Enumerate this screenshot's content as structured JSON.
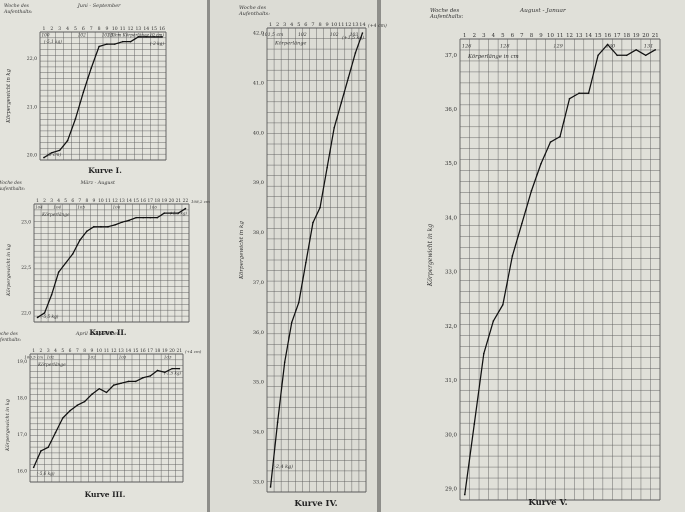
{
  "chart_data": [
    {
      "type": "line",
      "caption": "Kurve I.",
      "header_left": [
        "Woche des",
        "Aufenthalts:"
      ],
      "period": "Juni - September",
      "week_labels": [
        "1",
        "2",
        "3",
        "4",
        "5",
        "6",
        "7",
        "8",
        "9",
        "10",
        "11",
        "12",
        "13",
        "14",
        "15",
        "16"
      ],
      "height_labels": [
        {
          "week": 1.2,
          "text": "100"
        },
        {
          "week": 5.8,
          "text": "102"
        },
        {
          "week": 9.6,
          "text": "103"
        }
      ],
      "height_note": "103,5 cm Körperlänge (0 cm)",
      "start_note": "(0 cm)",
      "start_note2": "(-5,1 kg)",
      "end_note": "(-2 kg)",
      "ylabel": "Körpergewicht in kg",
      "y_ticks": [
        {
          "v": 20.0,
          "t": "20,0"
        },
        {
          "v": 21.0,
          "t": "21,0"
        },
        {
          "v": 22.0,
          "t": "22,0"
        }
      ],
      "ylim": [
        19.9,
        22.55
      ],
      "x": [
        1,
        2,
        3,
        4,
        5,
        6,
        7,
        8,
        9,
        10,
        11,
        12,
        13,
        14,
        15,
        16
      ],
      "values": [
        19.95,
        20.05,
        20.1,
        20.3,
        20.75,
        21.3,
        21.8,
        22.25,
        22.3,
        22.3,
        22.35,
        22.35,
        22.45,
        22.45,
        22.45,
        22.45
      ]
    },
    {
      "type": "line",
      "caption": "Kurve II.",
      "header_left": [
        "Woche des",
        "Aufenthalts:"
      ],
      "period": "März - August",
      "week_labels": [
        "1",
        "2",
        "3",
        "4",
        "5",
        "6",
        "7",
        "8",
        "9",
        "10",
        "11",
        "12",
        "13",
        "14",
        "15",
        "16",
        "17",
        "18",
        "19",
        "20",
        "21",
        "22"
      ],
      "height_labels": [
        {
          "week": 1.2,
          "text": "104"
        },
        {
          "week": 3.8,
          "text": "104"
        },
        {
          "week": 7.2,
          "text": "105"
        },
        {
          "week": 12.2,
          "text": "106"
        },
        {
          "week": 17.4,
          "text": "106"
        }
      ],
      "height_row_note": "Körperlänge",
      "start_note": "(-5,5 kg)",
      "end_note": "(-1,6 kg)",
      "end_height": "108,2 cm",
      "ylabel": "Körpergewicht in kg",
      "y_ticks": [
        {
          "v": 22.0,
          "t": "22,0"
        },
        {
          "v": 22.5,
          "t": "22,5"
        },
        {
          "v": 23.0,
          "t": "23,0"
        }
      ],
      "ylim": [
        21.9,
        23.2
      ],
      "x": [
        1,
        2,
        3,
        4,
        5,
        6,
        7,
        8,
        9,
        10,
        11,
        12,
        13,
        14,
        15,
        16,
        17,
        18,
        19,
        20,
        21,
        22
      ],
      "values": [
        21.95,
        22.0,
        22.2,
        22.45,
        22.55,
        22.65,
        22.8,
        22.9,
        22.95,
        22.95,
        22.95,
        22.97,
        23.0,
        23.02,
        23.05,
        23.05,
        23.05,
        23.05,
        23.1,
        23.1,
        23.1,
        23.15
      ]
    },
    {
      "type": "line",
      "caption": "Kurve III.",
      "header_left": [
        "Woche des",
        "Aufenthalts:"
      ],
      "period": "April - September",
      "week_labels": [
        "1",
        "2",
        "3",
        "4",
        "5",
        "6",
        "7",
        "8",
        "9",
        "10",
        "11",
        "12",
        "13",
        "14",
        "15",
        "16",
        "17",
        "18",
        "19",
        "20",
        "21"
      ],
      "height_labels": [
        {
          "week": 1.0,
          "text": "100,5 cm"
        },
        {
          "week": 3.3,
          "text": "102"
        },
        {
          "week": 9.0,
          "text": "102"
        },
        {
          "week": 13.2,
          "text": "103"
        },
        {
          "week": 19.4,
          "text": "103"
        }
      ],
      "height_row_note": "Körperlänge",
      "start_note": "(-5,6 kg)",
      "end_note": "(-1,5 kg)",
      "end_height": "(+4 cm)",
      "ylabel": "Körpergewicht in kg",
      "y_ticks": [
        {
          "v": 16.0,
          "t": "16,0"
        },
        {
          "v": 17.0,
          "t": "17,0"
        },
        {
          "v": 18.0,
          "t": "18,0"
        },
        {
          "v": 19.0,
          "t": "19,0"
        }
      ],
      "ylim": [
        15.7,
        19.2
      ],
      "x": [
        1,
        2,
        3,
        4,
        5,
        6,
        7,
        8,
        9,
        10,
        11,
        12,
        13,
        14,
        15,
        16,
        17,
        18,
        19,
        20,
        21
      ],
      "values": [
        16.1,
        16.55,
        16.65,
        17.05,
        17.45,
        17.65,
        17.8,
        17.9,
        18.1,
        18.25,
        18.15,
        18.35,
        18.4,
        18.45,
        18.45,
        18.55,
        18.6,
        18.75,
        18.7,
        18.8,
        18.8
      ]
    },
    {
      "type": "line",
      "caption": "Kurve IV.",
      "header_left": [
        "Woche des",
        "Aufenthalts:"
      ],
      "week_labels": [
        "1",
        "2",
        "3",
        "4",
        "5",
        "6",
        "7",
        "8",
        "9",
        "10",
        "11",
        "12",
        "13",
        "14"
      ],
      "height_labels": [
        {
          "week": 1.3,
          "text": "101,5 cm"
        },
        {
          "week": 5.5,
          "text": "102"
        },
        {
          "week": 10.0,
          "text": "102"
        },
        {
          "week": 12.8,
          "text": "103"
        }
      ],
      "height_row_note": "Körperlänge",
      "start_note": "(-2,4 kg)",
      "end_note": "(+1,5 kg)",
      "end_height": "(+4 cm)",
      "ylabel": "Körpergewicht in kg",
      "y_ticks": [
        {
          "v": 33.0,
          "t": "33,0"
        },
        {
          "v": 34.0,
          "t": "34,0"
        },
        {
          "v": 35.0,
          "t": "35,0"
        },
        {
          "v": 36.0,
          "t": "36,0"
        },
        {
          "v": 37.0,
          "t": "37,0"
        },
        {
          "v": 38.0,
          "t": "38,0"
        },
        {
          "v": 39.0,
          "t": "39,0"
        },
        {
          "v": 40.0,
          "t": "40,0"
        },
        {
          "v": 41.0,
          "t": "41,0"
        },
        {
          "v": 42.0,
          "t": "42,0"
        }
      ],
      "ylim": [
        32.8,
        42.1
      ],
      "x": [
        1,
        2,
        3,
        4,
        5,
        6,
        7,
        8,
        9,
        10,
        11,
        12,
        13,
        14
      ],
      "values": [
        32.9,
        34.2,
        35.4,
        36.2,
        36.6,
        37.4,
        38.2,
        38.5,
        39.3,
        40.1,
        40.6,
        41.1,
        41.6,
        42.0
      ]
    },
    {
      "type": "line",
      "caption": "Kurve V.",
      "header_left": [
        "Woche des",
        "Aufenthalts:"
      ],
      "period": "August - Januar",
      "week_labels": [
        "1",
        "2",
        "3",
        "4",
        "5",
        "6",
        "7",
        "8",
        "9",
        "10",
        "11",
        "12",
        "13",
        "14",
        "15",
        "16",
        "17",
        "18",
        "19",
        "20",
        "21"
      ],
      "height_labels": [
        {
          "week": 1.2,
          "text": "126"
        },
        {
          "week": 5.2,
          "text": "128"
        },
        {
          "week": 10.8,
          "text": "129"
        },
        {
          "week": 16.3,
          "text": "130"
        },
        {
          "week": 20.3,
          "text": "131"
        }
      ],
      "height_row_note": "Körperlänge in cm",
      "ylabel": "Körpergewicht in kg",
      "y_ticks": [
        {
          "v": 29.0,
          "t": "29,0"
        },
        {
          "v": 30.0,
          "t": "30,0"
        },
        {
          "v": 31.0,
          "t": "31,0"
        },
        {
          "v": 32.0,
          "t": "32,0"
        },
        {
          "v": 33.0,
          "t": "33,0"
        },
        {
          "v": 34.0,
          "t": "34,0"
        },
        {
          "v": 35.0,
          "t": "35,0"
        },
        {
          "v": 36.0,
          "t": "36,0"
        },
        {
          "v": 37.0,
          "t": "37,0"
        }
      ],
      "ylim": [
        28.8,
        37.3
      ],
      "x": [
        1,
        2,
        3,
        4,
        5,
        6,
        7,
        8,
        9,
        10,
        11,
        12,
        13,
        14,
        15,
        16,
        17,
        18,
        19,
        20,
        21
      ],
      "values": [
        28.9,
        30.2,
        31.5,
        32.1,
        32.4,
        33.3,
        33.9,
        34.5,
        35.0,
        35.4,
        35.5,
        36.2,
        36.3,
        36.3,
        37.0,
        37.2,
        37.0,
        37.0,
        37.1,
        37.0,
        37.1
      ]
    }
  ]
}
